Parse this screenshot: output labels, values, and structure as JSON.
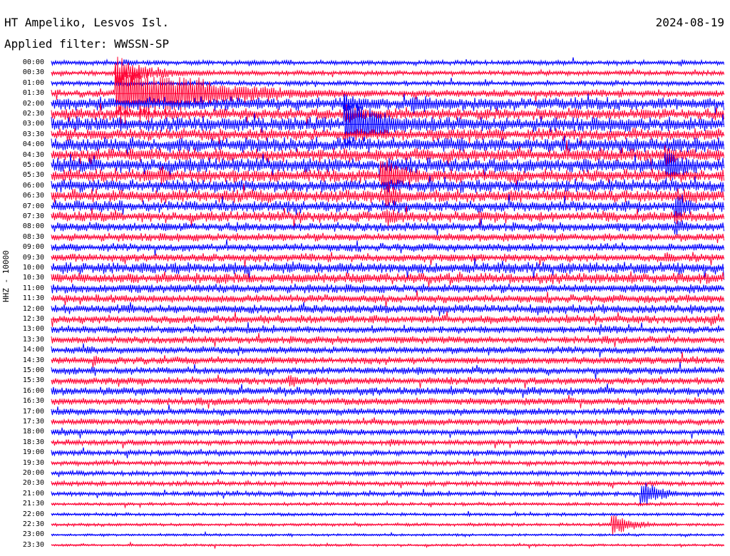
{
  "header": {
    "station": "HT Ampeliko, Lesvos Isl.",
    "filter": "Applied filter: WWSSN-SP",
    "date": "2024-08-19"
  },
  "chart_data": {
    "type": "helicorder",
    "ylabel": "HHZ - 10000",
    "colors": [
      "#0000ff",
      "#ff0033"
    ],
    "rows": [
      "00:00",
      "00:30",
      "01:00",
      "01:30",
      "02:00",
      "02:30",
      "03:00",
      "03:30",
      "04:00",
      "04:30",
      "05:00",
      "05:30",
      "06:00",
      "06:30",
      "07:00",
      "07:30",
      "08:00",
      "08:30",
      "09:00",
      "09:30",
      "10:00",
      "10:30",
      "11:00",
      "11:30",
      "12:00",
      "12:30",
      "13:00",
      "13:30",
      "14:00",
      "14:30",
      "15:00",
      "15:30",
      "16:00",
      "16:30",
      "17:00",
      "17:30",
      "18:00",
      "18:30",
      "19:00",
      "19:30",
      "20:00",
      "20:30",
      "21:00",
      "21:30",
      "22:00",
      "22:30",
      "23:00",
      "23:30"
    ],
    "row_duration_min": 30,
    "noise": [
      0.6,
      0.6,
      0.6,
      0.9,
      1.6,
      1.4,
      1.8,
      1.5,
      1.8,
      1.6,
      1.8,
      1.6,
      1.6,
      1.6,
      1.4,
      1.3,
      1.1,
      1.0,
      1.0,
      1.0,
      1.4,
      1.3,
      1.1,
      1.0,
      1.1,
      1.0,
      0.9,
      0.9,
      0.9,
      0.9,
      0.9,
      0.9,
      1.0,
      0.9,
      0.9,
      0.8,
      0.8,
      0.7,
      0.7,
      0.6,
      0.6,
      0.6,
      0.6,
      0.4,
      0.4,
      0.4,
      0.3,
      0.3
    ],
    "events": [
      {
        "row": 0,
        "minute": 3.2,
        "amp": 1.0,
        "dur": 1.2
      },
      {
        "row": 0,
        "minute": 28.1,
        "amp": 1.0,
        "dur": 0.8
      },
      {
        "row": 1,
        "minute": 2.9,
        "amp": 3.2,
        "dur": 6.0
      },
      {
        "row": 1,
        "minute": 27.5,
        "amp": 1.0,
        "dur": 0.8
      },
      {
        "row": 2,
        "minute": 2.9,
        "amp": 0.8,
        "dur": 3.0
      },
      {
        "row": 2,
        "minute": 10.5,
        "amp": 0.8,
        "dur": 0.8
      },
      {
        "row": 3,
        "minute": 2.9,
        "amp": 9.0,
        "dur": 12.0
      },
      {
        "row": 3,
        "minute": 29.3,
        "amp": 1.0,
        "dur": 0.6
      },
      {
        "row": 4,
        "minute": 13.1,
        "amp": 2.6,
        "dur": 4.0
      },
      {
        "row": 4,
        "minute": 16.1,
        "amp": 3.2,
        "dur": 3.0
      },
      {
        "row": 4,
        "minute": 17.6,
        "amp": 1.2,
        "dur": 1.5
      },
      {
        "row": 4,
        "minute": 24.7,
        "amp": 1.2,
        "dur": 2.0
      },
      {
        "row": 5,
        "minute": 6.2,
        "amp": 1.2,
        "dur": 0.8
      },
      {
        "row": 5,
        "minute": 8.8,
        "amp": 1.5,
        "dur": 1.0
      },
      {
        "row": 5,
        "minute": 13.1,
        "amp": 2.6,
        "dur": 4.0
      },
      {
        "row": 6,
        "minute": 13.1,
        "amp": 7.0,
        "dur": 6.0
      },
      {
        "row": 6,
        "minute": 15.9,
        "amp": 1.6,
        "dur": 1.5
      },
      {
        "row": 6,
        "minute": 16.6,
        "amp": 1.6,
        "dur": 1.5
      },
      {
        "row": 6,
        "minute": 29.2,
        "amp": 1.6,
        "dur": 1.2
      },
      {
        "row": 7,
        "minute": 4.1,
        "amp": 1.2,
        "dur": 1.0
      },
      {
        "row": 7,
        "minute": 27.8,
        "amp": 1.6,
        "dur": 1.2
      },
      {
        "row": 8,
        "minute": 11.8,
        "amp": 1.2,
        "dur": 1.0
      },
      {
        "row": 8,
        "minute": 27.7,
        "amp": 2.0,
        "dur": 2.0
      },
      {
        "row": 8,
        "minute": 29.5,
        "amp": 2.0,
        "dur": 1.0
      },
      {
        "row": 9,
        "minute": 16.5,
        "amp": 1.0,
        "dur": 1.0
      },
      {
        "row": 9,
        "minute": 27.4,
        "amp": 2.8,
        "dur": 2.5
      },
      {
        "row": 10,
        "minute": 9.9,
        "amp": 1.4,
        "dur": 1.0
      },
      {
        "row": 10,
        "minute": 27.4,
        "amp": 5.0,
        "dur": 3.0
      },
      {
        "row": 11,
        "minute": 2.2,
        "amp": 1.6,
        "dur": 1.5
      },
      {
        "row": 11,
        "minute": 4.9,
        "amp": 2.5,
        "dur": 2.5
      },
      {
        "row": 11,
        "minute": 14.7,
        "amp": 4.5,
        "dur": 5.0
      },
      {
        "row": 11,
        "minute": 23.9,
        "amp": 1.6,
        "dur": 1.5
      },
      {
        "row": 11,
        "minute": 27.7,
        "amp": 1.0,
        "dur": 1.0
      },
      {
        "row": 12,
        "minute": 0.1,
        "amp": 1.0,
        "dur": 1.0
      },
      {
        "row": 12,
        "minute": 5.6,
        "amp": 1.6,
        "dur": 2.5
      },
      {
        "row": 12,
        "minute": 6.3,
        "amp": 1.8,
        "dur": 2.0
      },
      {
        "row": 12,
        "minute": 14.9,
        "amp": 1.6,
        "dur": 1.0
      },
      {
        "row": 12,
        "minute": 22.5,
        "amp": 1.4,
        "dur": 1.5
      },
      {
        "row": 12,
        "minute": 27.8,
        "amp": 2.0,
        "dur": 1.0
      },
      {
        "row": 13,
        "minute": 1.3,
        "amp": 1.2,
        "dur": 2.5
      },
      {
        "row": 13,
        "minute": 2.6,
        "amp": 1.2,
        "dur": 1.0
      },
      {
        "row": 13,
        "minute": 7.6,
        "amp": 1.2,
        "dur": 1.0
      },
      {
        "row": 13,
        "minute": 14.9,
        "amp": 4.0,
        "dur": 2.5
      },
      {
        "row": 13,
        "minute": 16.4,
        "amp": 1.6,
        "dur": 1.5
      },
      {
        "row": 13,
        "minute": 25.6,
        "amp": 1.6,
        "dur": 1.0
      },
      {
        "row": 13,
        "minute": 28.2,
        "amp": 1.4,
        "dur": 1.0
      },
      {
        "row": 14,
        "minute": 1.8,
        "amp": 1.4,
        "dur": 1.0
      },
      {
        "row": 14,
        "minute": 12.8,
        "amp": 1.2,
        "dur": 1.5
      },
      {
        "row": 14,
        "minute": 18.2,
        "amp": 1.2,
        "dur": 2.5
      },
      {
        "row": 14,
        "minute": 22.6,
        "amp": 1.4,
        "dur": 2.5
      },
      {
        "row": 14,
        "minute": 27.8,
        "amp": 4.0,
        "dur": 2.5
      },
      {
        "row": 15,
        "minute": 14.9,
        "amp": 3.0,
        "dur": 2.5
      },
      {
        "row": 15,
        "minute": 24.5,
        "amp": 1.0,
        "dur": 1.0
      },
      {
        "row": 15,
        "minute": 27.8,
        "amp": 2.2,
        "dur": 2.0
      },
      {
        "row": 16,
        "minute": 9.3,
        "amp": 1.2,
        "dur": 0.8
      },
      {
        "row": 16,
        "minute": 27.8,
        "amp": 2.5,
        "dur": 2.0
      },
      {
        "row": 17,
        "minute": 21.9,
        "amp": 1.2,
        "dur": 1.0
      },
      {
        "row": 18,
        "minute": 6.6,
        "amp": 1.0,
        "dur": 1.0
      },
      {
        "row": 18,
        "minute": 26.6,
        "amp": 1.0,
        "dur": 1.0
      },
      {
        "row": 19,
        "minute": 17.6,
        "amp": 1.0,
        "dur": 1.5
      },
      {
        "row": 19,
        "minute": 18.6,
        "amp": 1.0,
        "dur": 1.5
      },
      {
        "row": 19,
        "minute": 27.4,
        "amp": 1.6,
        "dur": 1.5
      },
      {
        "row": 20,
        "minute": 22.7,
        "amp": 1.8,
        "dur": 2.5
      },
      {
        "row": 20,
        "minute": 27.2,
        "amp": 1.4,
        "dur": 1.5
      },
      {
        "row": 20,
        "minute": 28.6,
        "amp": 1.4,
        "dur": 1.5
      },
      {
        "row": 21,
        "minute": 3.0,
        "amp": 1.2,
        "dur": 3.0
      },
      {
        "row": 21,
        "minute": 8.8,
        "amp": 1.0,
        "dur": 3.0
      },
      {
        "row": 21,
        "minute": 28.0,
        "amp": 1.0,
        "dur": 1.0
      },
      {
        "row": 22,
        "minute": 0.0,
        "amp": 1.0,
        "dur": 1.0
      },
      {
        "row": 22,
        "minute": 6.4,
        "amp": 1.0,
        "dur": 2.0
      },
      {
        "row": 23,
        "minute": 14.4,
        "amp": 1.0,
        "dur": 1.5
      },
      {
        "row": 23,
        "minute": 26.5,
        "amp": 1.2,
        "dur": 1.5
      },
      {
        "row": 24,
        "minute": 0.6,
        "amp": 1.2,
        "dur": 1.0
      },
      {
        "row": 24,
        "minute": 14.6,
        "amp": 1.0,
        "dur": 2.0
      },
      {
        "row": 25,
        "minute": 23.0,
        "amp": 1.6,
        "dur": 1.5
      },
      {
        "row": 25,
        "minute": 29.5,
        "amp": 1.4,
        "dur": 1.0
      },
      {
        "row": 26,
        "minute": 22.8,
        "amp": 1.0,
        "dur": 1.0
      },
      {
        "row": 26,
        "minute": 24.5,
        "amp": 1.6,
        "dur": 1.5
      },
      {
        "row": 27,
        "minute": 15.6,
        "amp": 1.2,
        "dur": 1.5
      },
      {
        "row": 27,
        "minute": 17.4,
        "amp": 1.2,
        "dur": 1.5
      },
      {
        "row": 28,
        "minute": 1.8,
        "amp": 1.0,
        "dur": 0.8
      },
      {
        "row": 29,
        "minute": 1.9,
        "amp": 1.6,
        "dur": 2.0
      },
      {
        "row": 29,
        "minute": 22.3,
        "amp": 1.0,
        "dur": 1.0
      },
      {
        "row": 30,
        "minute": 16.3,
        "amp": 1.4,
        "dur": 1.5
      },
      {
        "row": 31,
        "minute": 10.6,
        "amp": 2.2,
        "dur": 2.0
      },
      {
        "row": 31,
        "minute": 26.4,
        "amp": 1.0,
        "dur": 1.0
      },
      {
        "row": 32,
        "minute": 8.4,
        "amp": 1.0,
        "dur": 4.0
      },
      {
        "row": 33,
        "minute": 11.0,
        "amp": 1.0,
        "dur": 1.0
      },
      {
        "row": 33,
        "minute": 16.3,
        "amp": 1.0,
        "dur": 1.0
      },
      {
        "row": 33,
        "minute": 22.4,
        "amp": 1.0,
        "dur": 2.0
      },
      {
        "row": 34,
        "minute": 15.7,
        "amp": 1.0,
        "dur": 2.0
      },
      {
        "row": 36,
        "minute": 0.0,
        "amp": 1.0,
        "dur": 0.8
      },
      {
        "row": 37,
        "minute": 15.1,
        "amp": 1.2,
        "dur": 1.5
      },
      {
        "row": 38,
        "minute": 7.5,
        "amp": 1.0,
        "dur": 1.0
      },
      {
        "row": 38,
        "minute": 20.8,
        "amp": 1.0,
        "dur": 2.0
      },
      {
        "row": 41,
        "minute": 5.6,
        "amp": 0.8,
        "dur": 0.8
      },
      {
        "row": 42,
        "minute": 8.3,
        "amp": 0.8,
        "dur": 0.8
      },
      {
        "row": 42,
        "minute": 26.3,
        "amp": 3.5,
        "dur": 3.0
      },
      {
        "row": 44,
        "minute": 18.6,
        "amp": 1.0,
        "dur": 0.3
      },
      {
        "row": 45,
        "minute": 25.0,
        "amp": 3.0,
        "dur": 3.0
      },
      {
        "row": 46,
        "minute": 6.0,
        "amp": 0.6,
        "dur": 0.3
      }
    ]
  }
}
